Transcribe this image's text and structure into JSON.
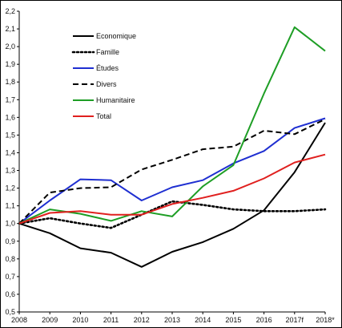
{
  "chart_data": {
    "type": "line",
    "x": [
      "2008",
      "2009",
      "2010",
      "2011",
      "2012",
      "2013",
      "2014",
      "2015",
      "2016",
      "2017f",
      "2018*"
    ],
    "ylim": [
      0.5,
      2.2
    ],
    "yticks": [
      "0,5",
      "0,6",
      "0,7",
      "0,8",
      "0,9",
      "1,0",
      "1,1",
      "1,2",
      "1,3",
      "1,4",
      "1,5",
      "1,6",
      "1,7",
      "1,8",
      "1,9",
      "2,0",
      "2,1",
      "2,2"
    ],
    "ytick_values": [
      0.5,
      0.6,
      0.7,
      0.8,
      0.9,
      1.0,
      1.1,
      1.2,
      1.3,
      1.4,
      1.5,
      1.6,
      1.7,
      1.8,
      1.9,
      2.0,
      2.1,
      2.2
    ],
    "grid": false,
    "legend_position": "top-left",
    "series": [
      {
        "name": "Economique",
        "color": "#000000",
        "style": "solid",
        "values": [
          1.0,
          0.945,
          0.86,
          0.835,
          0.755,
          0.84,
          0.895,
          0.97,
          1.075,
          1.29,
          1.57
        ]
      },
      {
        "name": "Famille",
        "color": "#000000",
        "style": "dotted",
        "values": [
          1.0,
          1.03,
          1.0,
          0.975,
          1.05,
          1.125,
          1.105,
          1.08,
          1.07,
          1.07,
          1.08
        ]
      },
      {
        "name": "Études",
        "color": "#1f2fd1",
        "style": "solid",
        "values": [
          1.0,
          1.13,
          1.25,
          1.245,
          1.13,
          1.205,
          1.245,
          1.34,
          1.41,
          1.54,
          1.595
        ]
      },
      {
        "name": "Divers",
        "color": "#000000",
        "style": "dashed",
        "values": [
          1.0,
          1.175,
          1.2,
          1.205,
          1.305,
          1.36,
          1.42,
          1.435,
          1.525,
          1.505,
          1.59
        ]
      },
      {
        "name": "Humanitaire",
        "color": "#1e9e25",
        "style": "solid",
        "values": [
          1.0,
          1.08,
          1.055,
          1.015,
          1.07,
          1.04,
          1.21,
          1.33,
          1.735,
          2.11,
          1.975
        ]
      },
      {
        "name": "Total",
        "color": "#e0201f",
        "style": "solid",
        "values": [
          1.0,
          1.06,
          1.07,
          1.05,
          1.05,
          1.11,
          1.145,
          1.185,
          1.255,
          1.345,
          1.39
        ]
      }
    ]
  }
}
